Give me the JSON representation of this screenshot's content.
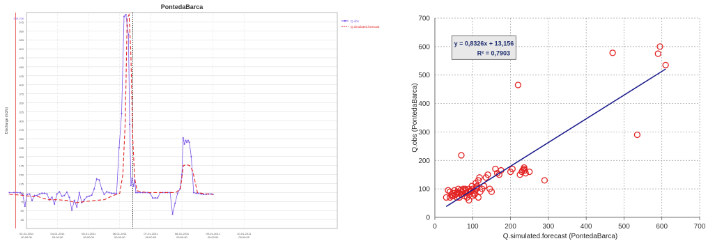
{
  "chart_data": [
    {
      "type": "line",
      "title": "PontedaBarca",
      "ylabel": "Discharge (m3/s)",
      "ylim": [
        0,
        601
      ],
      "yticks": [
        25,
        50,
        75,
        100,
        125,
        150,
        175,
        200,
        225,
        250,
        275,
        300,
        325,
        350,
        375,
        400,
        425,
        450,
        475,
        500,
        525,
        550,
        575
      ],
      "ymax_label": "595,226",
      "xlim": [
        0,
        10
      ],
      "xticks": [
        {
          "x": 0,
          "date": "03-01-2011",
          "time": "00:00:00"
        },
        {
          "x": 1,
          "date": "04-01-2011",
          "time": "00:00:00"
        },
        {
          "x": 2,
          "date": "05-01-2011",
          "time": "00:00:00"
        },
        {
          "x": 3,
          "date": "06-01-2011",
          "time": "00:00:00"
        },
        {
          "x": 4,
          "date": "07-01-2011",
          "time": "00:00:00"
        },
        {
          "x": 5,
          "date": "08-01-2011",
          "time": "00:00:00"
        },
        {
          "x": 6,
          "date": "09-01-2011",
          "time": "00:00:00"
        },
        {
          "x": 7,
          "date": "10-01-2011",
          "time": "00:00:00"
        }
      ],
      "vlines": [
        {
          "x": -0.35,
          "color": "#e34a4a"
        },
        {
          "x": 3.42,
          "color": "#222222"
        }
      ],
      "legend_position": "top-right",
      "series": [
        {
          "name": "Q.obs",
          "color": "#7b55e6",
          "marker": "circle",
          "x": [
            -0.55,
            -0.4,
            -0.3,
            -0.2,
            -0.12,
            -0.05,
            0.02,
            0.1,
            0.18,
            0.26,
            0.34,
            0.42,
            0.5,
            0.58,
            0.66,
            0.74,
            0.82,
            0.9,
            0.98,
            1.06,
            1.14,
            1.22,
            1.3,
            1.38,
            1.46,
            1.54,
            1.62,
            1.7,
            1.78,
            1.86,
            1.94,
            2.02,
            2.1,
            2.18,
            2.26,
            2.34,
            2.42,
            2.5,
            2.58,
            2.66,
            2.74,
            2.82,
            2.9,
            2.98,
            3.06,
            3.14,
            3.2,
            3.24,
            3.28,
            3.32,
            3.36,
            3.4,
            3.44,
            3.48,
            3.52,
            3.58,
            3.66,
            3.74,
            3.82,
            3.9,
            3.98,
            4.06,
            4.14,
            4.22,
            4.3,
            4.38,
            4.46,
            4.54,
            4.62,
            4.7,
            4.78,
            4.86,
            4.94,
            5.0,
            5.04,
            5.08,
            5.12,
            5.16,
            5.2,
            5.24,
            5.3,
            5.38,
            5.46,
            5.54,
            5.62,
            5.7,
            5.78,
            5.86,
            5.94,
            6.0
          ],
          "y": [
            100,
            100,
            100,
            100,
            95,
            62,
            95,
            96,
            78,
            92,
            92,
            96,
            98,
            98,
            96,
            80,
            87,
            68,
            96,
            102,
            90,
            92,
            101,
            87,
            51,
            78,
            60,
            100,
            72,
            80,
            88,
            90,
            93,
            110,
            138,
            135,
            110,
            95,
            102,
            100,
            98,
            98,
            97,
            225,
            320,
            590,
            595,
            565,
            540,
            290,
            120,
            140,
            118,
            135,
            100,
            100,
            100,
            100,
            100,
            100,
            98,
            85,
            85,
            85,
            100,
            100,
            100,
            100,
            100,
            40,
            70,
            98,
            110,
            150,
            252,
            235,
            245,
            240,
            245,
            240,
            200,
            100,
            98,
            98,
            96,
            95,
            95,
            96,
            96,
            95
          ]
        },
        {
          "name": "Q.simulated.forecast",
          "color": "#e32222",
          "dash": "5,3",
          "x": [
            -0.55,
            -0.2,
            0.1,
            0.4,
            0.7,
            1.0,
            1.3,
            1.6,
            1.9,
            2.2,
            2.5,
            2.8,
            3.0,
            3.1,
            3.18,
            3.24,
            3.3,
            3.36,
            3.42,
            3.48,
            3.56,
            3.7,
            3.9,
            4.2,
            4.5,
            4.8,
            4.95,
            5.05,
            5.15,
            5.25,
            5.35,
            5.5,
            5.7,
            6.0
          ],
          "y": [
            95,
            93,
            90,
            88,
            80,
            80,
            78,
            72,
            75,
            78,
            80,
            92,
            98,
            150,
            300,
            585,
            595,
            480,
            250,
            140,
            105,
            102,
            100,
            100,
            100,
            100,
            110,
            175,
            178,
            175,
            160,
            100,
            97,
            95
          ]
        }
      ]
    },
    {
      "type": "scatter",
      "xlabel": "Q.simulated.forecast (PontedaBarca)",
      "ylabel": "Q.obs (PontedaBarca)",
      "xlim": [
        0,
        700
      ],
      "ylim": [
        0,
        700
      ],
      "xticks": [
        0,
        100,
        200,
        300,
        400,
        500,
        600,
        700
      ],
      "yticks": [
        0,
        100,
        200,
        300,
        400,
        500,
        600,
        700
      ],
      "xtick_labels": [
        "0",
        "100",
        "200",
        "300",
        "400",
        "500",
        "600",
        "700"
      ],
      "grid": true,
      "annotation": {
        "equation": "y = 0,8326x + 13,156",
        "r2": "R² = 0,7903"
      },
      "trendline": {
        "slope": 0.8326,
        "intercept": 13.156,
        "x_range": [
          30,
          610
        ],
        "color": "#1f1f8f"
      },
      "points": {
        "color": "#e32222",
        "x": [
          30,
          35,
          40,
          45,
          48,
          50,
          52,
          55,
          58,
          60,
          62,
          65,
          68,
          70,
          72,
          75,
          78,
          80,
          82,
          85,
          88,
          90,
          92,
          95,
          98,
          100,
          102,
          105,
          108,
          110,
          112,
          115,
          118,
          120,
          125,
          130,
          135,
          140,
          145,
          150,
          160,
          165,
          170,
          175,
          200,
          205,
          220,
          225,
          230,
          232,
          235,
          236,
          238,
          240,
          250,
          290,
          470,
          535,
          590,
          595,
          610,
          70,
          40,
          45,
          55,
          60,
          65,
          75,
          85,
          95,
          105,
          115,
          100,
          110,
          90,
          80
        ],
        "y": [
          70,
          95,
          90,
          80,
          75,
          85,
          95,
          80,
          70,
          90,
          100,
          85,
          95,
          80,
          90,
          100,
          75,
          85,
          95,
          70,
          90,
          100,
          80,
          95,
          110,
          100,
          85,
          95,
          120,
          100,
          110,
          130,
          140,
          90,
          100,
          110,
          140,
          150,
          100,
          90,
          170,
          155,
          150,
          165,
          160,
          170,
          465,
          150,
          160,
          165,
          170,
          175,
          165,
          155,
          160,
          130,
          578,
          290,
          575,
          600,
          535,
          218,
          70,
          75,
          80,
          85,
          70,
          95,
          85,
          90,
          80,
          70,
          75,
          105,
          60,
          100
        ]
      }
    }
  ]
}
